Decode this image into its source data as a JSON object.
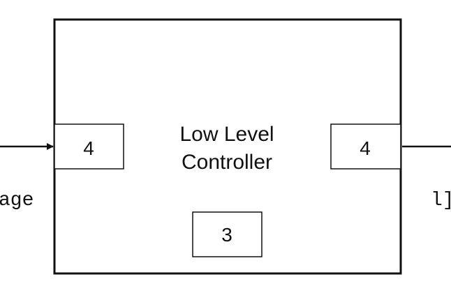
{
  "diagram": {
    "block": {
      "title_line1": "Low Level",
      "title_line2": "Controller"
    },
    "ports": {
      "input_port": "4",
      "output_port": "4",
      "bottom_port": "3"
    },
    "signals": {
      "input_label": "age",
      "output_label": "l]"
    }
  }
}
